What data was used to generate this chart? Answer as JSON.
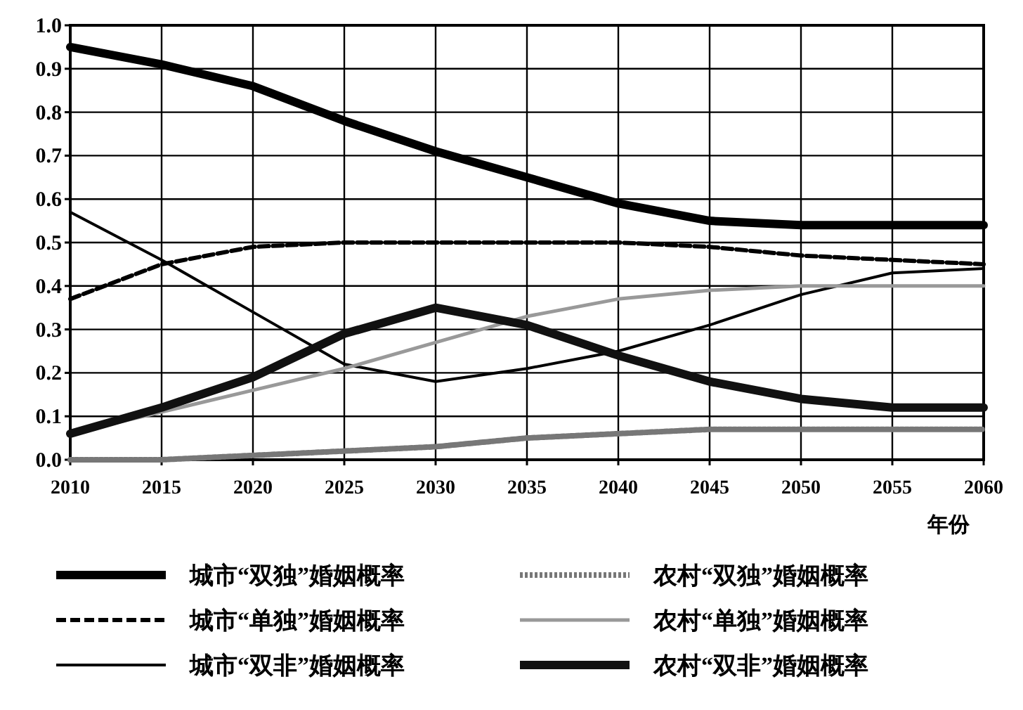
{
  "chart_data": {
    "type": "line",
    "xlabel": "年份",
    "x": [
      2010,
      2015,
      2020,
      2025,
      2030,
      2035,
      2040,
      2045,
      2050,
      2055,
      2060
    ],
    "xlim": [
      2010,
      2060
    ],
    "xticks": [
      2010,
      2015,
      2020,
      2025,
      2030,
      2035,
      2040,
      2045,
      2050,
      2055,
      2060
    ],
    "ylim": [
      0,
      1
    ],
    "yticks": [
      {
        "value": 0,
        "label": "0.0"
      },
      0.1,
      0.2,
      0.3,
      0.4,
      0.5,
      0.6,
      0.7,
      0.8,
      0.9,
      {
        "value": 1,
        "label": "1.0"
      }
    ],
    "grid": true,
    "legend": "bottom",
    "series": [
      {
        "name": "城市“双独”婚姻概率",
        "color": "#000000",
        "line_style": "solid",
        "values": [
          0.95,
          0.91,
          0.86,
          0.78,
          0.71,
          0.65,
          0.59,
          0.55,
          0.54,
          0.54,
          0.54
        ]
      },
      {
        "name": "城市“单独”婚姻概率",
        "color": "#000000",
        "line_style": "dashed",
        "values": [
          0.37,
          0.45,
          0.49,
          0.5,
          0.5,
          0.5,
          0.5,
          0.49,
          0.47,
          0.46,
          0.45
        ]
      },
      {
        "name": "城市“双非”婚姻概率",
        "color": "#000000",
        "line_style": "solid",
        "values": [
          0.57,
          0.46,
          0.34,
          0.22,
          0.18,
          0.21,
          0.25,
          0.31,
          0.38,
          0.43,
          0.44
        ]
      },
      {
        "name": "农村“双独”婚姻概率",
        "color": "#777777",
        "line_style": "dotted",
        "values": [
          0.0,
          0.0,
          0.01,
          0.02,
          0.03,
          0.05,
          0.06,
          0.07,
          0.07,
          0.07,
          0.07
        ]
      },
      {
        "name": "农村“单独”婚姻概率",
        "color": "#999999",
        "line_style": "solid",
        "values": [
          0.06,
          0.11,
          0.16,
          0.21,
          0.27,
          0.33,
          0.37,
          0.39,
          0.4,
          0.4,
          0.4
        ]
      },
      {
        "name": "农村“双非”婚姻概率",
        "color": "#111111",
        "line_style": "solid",
        "values": [
          0.06,
          0.12,
          0.19,
          0.29,
          0.35,
          0.31,
          0.24,
          0.18,
          0.14,
          0.12,
          0.12
        ]
      }
    ]
  }
}
